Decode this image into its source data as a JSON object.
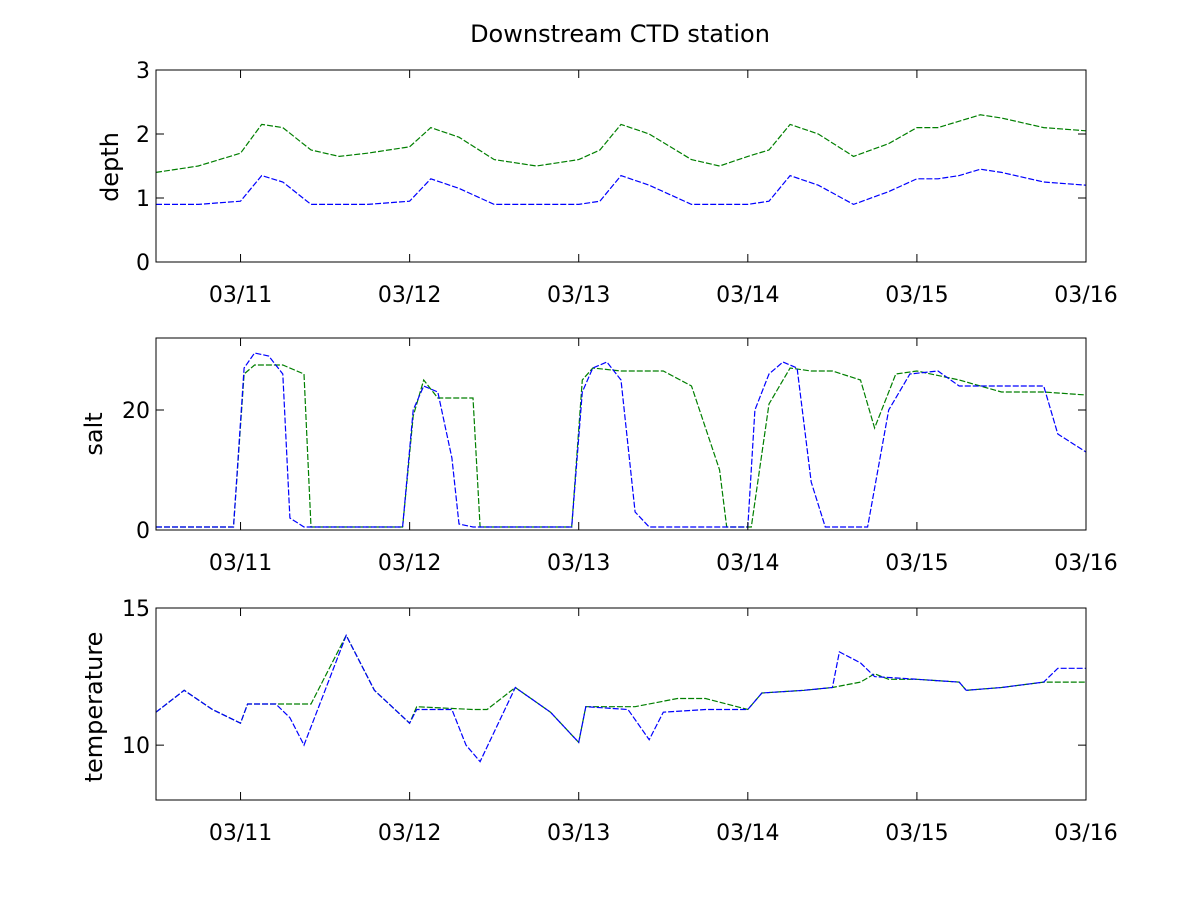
{
  "colors": {
    "series_1": "#0000ff",
    "series_2": "#007f00",
    "axes": "#000000",
    "background": "#ffffff"
  },
  "chart_data": [
    {
      "type": "line",
      "title": "Downstream CTD station",
      "xlabel": "",
      "ylabel": "depth",
      "ylim": [
        0,
        3
      ],
      "yticks": [
        0,
        1,
        2,
        3
      ],
      "xlim": [
        "03/10 12:00",
        "03/16 00:00"
      ],
      "xticks": [
        "03/11",
        "03/12",
        "03/13",
        "03/14",
        "03/15",
        "03/16"
      ],
      "grid": false,
      "series": [
        {
          "color": "#007f00",
          "style": "dashed",
          "x": [
            "03/10 12:00",
            "03/10 18:00",
            "03/11 00:00",
            "03/11 03:00",
            "03/11 06:00",
            "03/11 10:00",
            "03/11 14:00",
            "03/11 18:00",
            "03/12 00:00",
            "03/12 03:00",
            "03/12 07:00",
            "03/12 12:00",
            "03/12 18:00",
            "03/13 00:00",
            "03/13 03:00",
            "03/13 06:00",
            "03/13 10:00",
            "03/13 16:00",
            "03/13 20:00",
            "03/14 00:00",
            "03/14 03:00",
            "03/14 06:00",
            "03/14 10:00",
            "03/14 15:00",
            "03/14 20:00",
            "03/15 00:00",
            "03/15 03:00",
            "03/15 06:00",
            "03/15 09:00",
            "03/15 12:00",
            "03/15 18:00",
            "03/16 00:00"
          ],
          "y": [
            1.4,
            1.5,
            1.7,
            2.15,
            2.1,
            1.75,
            1.65,
            1.7,
            1.8,
            2.1,
            1.95,
            1.6,
            1.5,
            1.6,
            1.75,
            2.15,
            2.0,
            1.6,
            1.5,
            1.65,
            1.75,
            2.15,
            2.0,
            1.65,
            1.85,
            2.1,
            2.1,
            2.2,
            2.3,
            2.25,
            2.1,
            2.05
          ]
        },
        {
          "color": "#0000ff",
          "style": "dashed",
          "x": [
            "03/10 12:00",
            "03/10 18:00",
            "03/11 00:00",
            "03/11 03:00",
            "03/11 06:00",
            "03/11 10:00",
            "03/11 14:00",
            "03/11 18:00",
            "03/12 00:00",
            "03/12 03:00",
            "03/12 07:00",
            "03/12 12:00",
            "03/12 18:00",
            "03/13 00:00",
            "03/13 03:00",
            "03/13 06:00",
            "03/13 10:00",
            "03/13 16:00",
            "03/13 20:00",
            "03/14 00:00",
            "03/14 03:00",
            "03/14 06:00",
            "03/14 10:00",
            "03/14 15:00",
            "03/14 20:00",
            "03/15 00:00",
            "03/15 03:00",
            "03/15 06:00",
            "03/15 09:00",
            "03/15 12:00",
            "03/15 18:00",
            "03/16 00:00"
          ],
          "y": [
            0.9,
            0.9,
            0.95,
            1.35,
            1.25,
            0.9,
            0.9,
            0.9,
            0.95,
            1.3,
            1.15,
            0.9,
            0.9,
            0.9,
            0.95,
            1.35,
            1.2,
            0.9,
            0.9,
            0.9,
            0.95,
            1.35,
            1.2,
            0.9,
            1.1,
            1.3,
            1.3,
            1.35,
            1.45,
            1.4,
            1.25,
            1.2
          ]
        }
      ]
    },
    {
      "type": "line",
      "title": "",
      "xlabel": "",
      "ylabel": "salt",
      "ylim": [
        0,
        32
      ],
      "yticks": [
        0,
        20
      ],
      "xlim": [
        "03/10 12:00",
        "03/16 00:00"
      ],
      "xticks": [
        "03/11",
        "03/12",
        "03/13",
        "03/14",
        "03/15",
        "03/16"
      ],
      "grid": false,
      "series": [
        {
          "color": "#007f00",
          "style": "dashed",
          "x": [
            "03/10 12:00",
            "03/10 23:00",
            "03/11 00:30",
            "03/11 02:00",
            "03/11 06:00",
            "03/11 09:00",
            "03/11 10:00",
            "03/11 14:00",
            "03/11 23:00",
            "03/12 00:30",
            "03/12 02:00",
            "03/12 04:00",
            "03/12 09:00",
            "03/12 10:00",
            "03/12 14:00",
            "03/12 23:00",
            "03/13 00:30",
            "03/13 02:00",
            "03/13 06:00",
            "03/13 12:00",
            "03/13 16:00",
            "03/13 20:00",
            "03/13 21:00",
            "03/14 00:30",
            "03/14 03:00",
            "03/14 06:00",
            "03/14 09:00",
            "03/14 12:00",
            "03/14 16:00",
            "03/14 18:00",
            "03/14 21:00",
            "03/15 00:00",
            "03/15 06:00",
            "03/15 12:00",
            "03/15 18:00",
            "03/16 00:00"
          ],
          "y": [
            0.5,
            0.5,
            26,
            27.5,
            27.5,
            26,
            0.5,
            0.5,
            0.5,
            19,
            25,
            22,
            22,
            0.5,
            0.5,
            0.5,
            25,
            27,
            26.5,
            26.5,
            24,
            10,
            0.5,
            0.5,
            21,
            27,
            26.5,
            26.5,
            25,
            17,
            26,
            26.5,
            25,
            23,
            23,
            22.5
          ]
        },
        {
          "color": "#0000ff",
          "style": "dashed",
          "x": [
            "03/10 12:00",
            "03/10 23:00",
            "03/11 00:30",
            "03/11 02:00",
            "03/11 04:00",
            "03/11 06:00",
            "03/11 07:00",
            "03/11 09:00",
            "03/11 23:00",
            "03/12 00:30",
            "03/12 02:00",
            "03/12 04:00",
            "03/12 06:00",
            "03/12 07:00",
            "03/12 09:00",
            "03/12 23:00",
            "03/13 00:30",
            "03/13 02:00",
            "03/13 04:00",
            "03/13 06:00",
            "03/13 08:00",
            "03/13 10:00",
            "03/14 00:00",
            "03/14 01:00",
            "03/14 03:00",
            "03/14 05:00",
            "03/14 07:00",
            "03/14 09:00",
            "03/14 11:00",
            "03/14 17:00",
            "03/14 20:00",
            "03/14 23:00",
            "03/15 03:00",
            "03/15 06:00",
            "03/15 12:00",
            "03/15 18:00",
            "03/15 20:00",
            "03/16 00:00"
          ],
          "y": [
            0.5,
            0.5,
            27,
            29.5,
            29,
            26,
            2,
            0.5,
            0.5,
            20,
            24,
            23,
            12,
            1,
            0.5,
            0.5,
            23,
            27,
            28,
            25,
            3,
            0.5,
            0.5,
            20,
            26,
            28,
            27,
            8,
            0.5,
            0.5,
            20,
            26,
            26.5,
            24,
            24,
            24,
            16,
            13
          ]
        }
      ]
    },
    {
      "type": "line",
      "title": "",
      "xlabel": "",
      "ylabel": "temperature",
      "ylim": [
        8,
        15
      ],
      "yticks": [
        10,
        15
      ],
      "xlim": [
        "03/10 12:00",
        "03/16 00:00"
      ],
      "xticks": [
        "03/11",
        "03/12",
        "03/13",
        "03/14",
        "03/15",
        "03/16"
      ],
      "grid": false,
      "series": [
        {
          "color": "#007f00",
          "style": "dashed",
          "x": [
            "03/10 12:00",
            "03/10 16:00",
            "03/10 20:00",
            "03/11 00:00",
            "03/11 01:00",
            "03/11 08:00",
            "03/11 10:00",
            "03/11 15:00",
            "03/11 19:00",
            "03/12 00:00",
            "03/12 01:00",
            "03/12 09:00",
            "03/12 11:00",
            "03/12 15:00",
            "03/12 20:00",
            "03/13 00:00",
            "03/13 01:00",
            "03/13 08:00",
            "03/13 14:00",
            "03/13 18:00",
            "03/14 00:00",
            "03/14 02:00",
            "03/14 08:00",
            "03/14 12:00",
            "03/14 16:00",
            "03/14 18:00",
            "03/14 20:00",
            "03/15 00:00",
            "03/15 06:00",
            "03/15 07:00",
            "03/15 12:00",
            "03/15 18:00",
            "03/16 00:00"
          ],
          "y": [
            11.2,
            12.0,
            11.3,
            10.8,
            11.5,
            11.5,
            11.5,
            14.0,
            12.0,
            10.8,
            11.4,
            11.3,
            11.3,
            12.1,
            11.2,
            10.1,
            11.4,
            11.4,
            11.7,
            11.7,
            11.3,
            11.9,
            12.0,
            12.1,
            12.3,
            12.6,
            12.4,
            12.4,
            12.3,
            12.0,
            12.1,
            12.3,
            12.3
          ]
        },
        {
          "color": "#0000ff",
          "style": "dashed",
          "x": [
            "03/10 12:00",
            "03/10 16:00",
            "03/10 20:00",
            "03/11 00:00",
            "03/11 01:00",
            "03/11 05:00",
            "03/11 07:00",
            "03/11 09:00",
            "03/11 15:00",
            "03/11 19:00",
            "03/12 00:00",
            "03/12 01:00",
            "03/12 06:00",
            "03/12 08:00",
            "03/12 10:00",
            "03/12 15:00",
            "03/12 20:00",
            "03/13 00:00",
            "03/13 01:00",
            "03/13 07:00",
            "03/13 10:00",
            "03/13 12:00",
            "03/13 18:00",
            "03/14 00:00",
            "03/14 02:00",
            "03/14 08:00",
            "03/14 12:00",
            "03/14 13:00",
            "03/14 16:00",
            "03/14 18:00",
            "03/15 00:00",
            "03/15 06:00",
            "03/15 07:00",
            "03/15 12:00",
            "03/15 18:00",
            "03/15 20:00",
            "03/16 00:00"
          ],
          "y": [
            11.2,
            12.0,
            11.3,
            10.8,
            11.5,
            11.5,
            11.0,
            10.0,
            14.0,
            12.0,
            10.8,
            11.3,
            11.3,
            10.0,
            9.4,
            12.1,
            11.2,
            10.1,
            11.4,
            11.3,
            10.2,
            11.2,
            11.3,
            11.3,
            11.9,
            12.0,
            12.1,
            13.4,
            13.0,
            12.5,
            12.4,
            12.3,
            12.0,
            12.1,
            12.3,
            12.8,
            12.8
          ]
        }
      ]
    }
  ]
}
